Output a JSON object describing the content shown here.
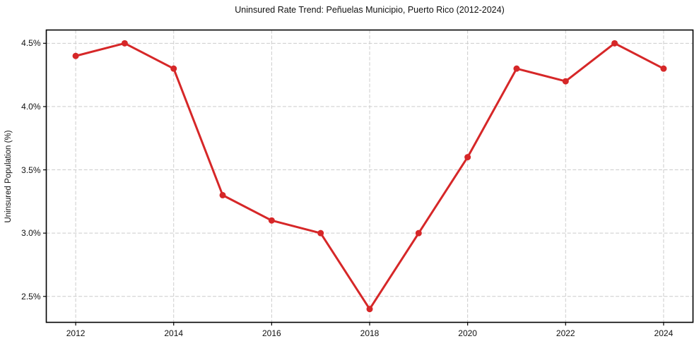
{
  "chart_data": {
    "type": "line",
    "title": "Uninsured Rate Trend: Peñuelas Municipio, Puerto Rico (2012-2024)",
    "xlabel": "",
    "ylabel": "Uninsured Population (%)",
    "x": [
      2012,
      2013,
      2014,
      2015,
      2016,
      2017,
      2018,
      2019,
      2020,
      2021,
      2022,
      2023,
      2024
    ],
    "series": [
      {
        "name": "Uninsured Population (%)",
        "values": [
          4.4,
          4.5,
          4.3,
          3.3,
          3.1,
          3.0,
          2.4,
          3.0,
          3.6,
          4.3,
          4.2,
          4.5,
          4.3
        ],
        "color": "#d62728"
      }
    ],
    "xlim": [
      2011.4,
      2024.6
    ],
    "ylim": [
      2.295,
      4.605
    ],
    "x_ticks": {
      "values": [
        2012,
        2014,
        2016,
        2018,
        2020,
        2022,
        2024
      ],
      "labels": [
        "2012",
        "2014",
        "2016",
        "2018",
        "2020",
        "2022",
        "2024"
      ]
    },
    "y_ticks": {
      "values": [
        2.5,
        3.0,
        3.5,
        4.0,
        4.5
      ],
      "labels": [
        "2.5%",
        "3.0%",
        "3.5%",
        "4.0%",
        "4.5%"
      ]
    },
    "grid": true,
    "legend_position": "none",
    "style": {
      "line_color": "#d62728",
      "line_width": 3,
      "marker": "circle",
      "marker_radius": 4.5,
      "grid_color": "#cccccc",
      "grid_style": "dashed",
      "axis_color": "#000000",
      "background": "#ffffff"
    }
  }
}
